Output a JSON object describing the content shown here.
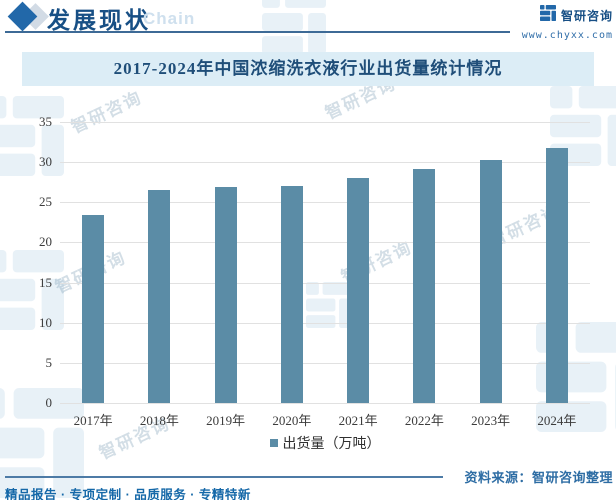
{
  "header": {
    "section_title": "发展现状",
    "section_subtitle": "Chain",
    "brand_name": "智研咨询",
    "brand_url": "www.chyxx.com"
  },
  "chart_data": {
    "type": "bar",
    "title": "2017-2024年中国浓缩洗衣液行业出货量统计情况",
    "categories": [
      "2017年",
      "2018年",
      "2019年",
      "2020年",
      "2021年",
      "2022年",
      "2023年",
      "2024年"
    ],
    "values": [
      23.4,
      26.5,
      26.9,
      27.0,
      28.0,
      29.2,
      30.3,
      31.8
    ],
    "series_name": "出货量（万吨）",
    "xlabel": "",
    "ylabel": "",
    "ylim": [
      0,
      35
    ],
    "yticks": [
      0,
      5,
      10,
      15,
      20,
      25,
      30,
      35
    ],
    "grid": true,
    "legend_position": "bottom",
    "bar_color": "#5b8ca6"
  },
  "legend": {
    "label": "出货量（万吨）"
  },
  "footer": {
    "tagline": "精品报告 · 专项定制 · 品质服务 · 专精特新",
    "source": "资料来源：智研咨询整理"
  },
  "watermark": {
    "text": "智研咨询"
  },
  "colors": {
    "bar": "#5b8ca6",
    "title_band_bg": "#dcedf6",
    "title_text": "#1f4e79",
    "header_accent": "#2268a9",
    "footer_text": "#1568a8"
  }
}
